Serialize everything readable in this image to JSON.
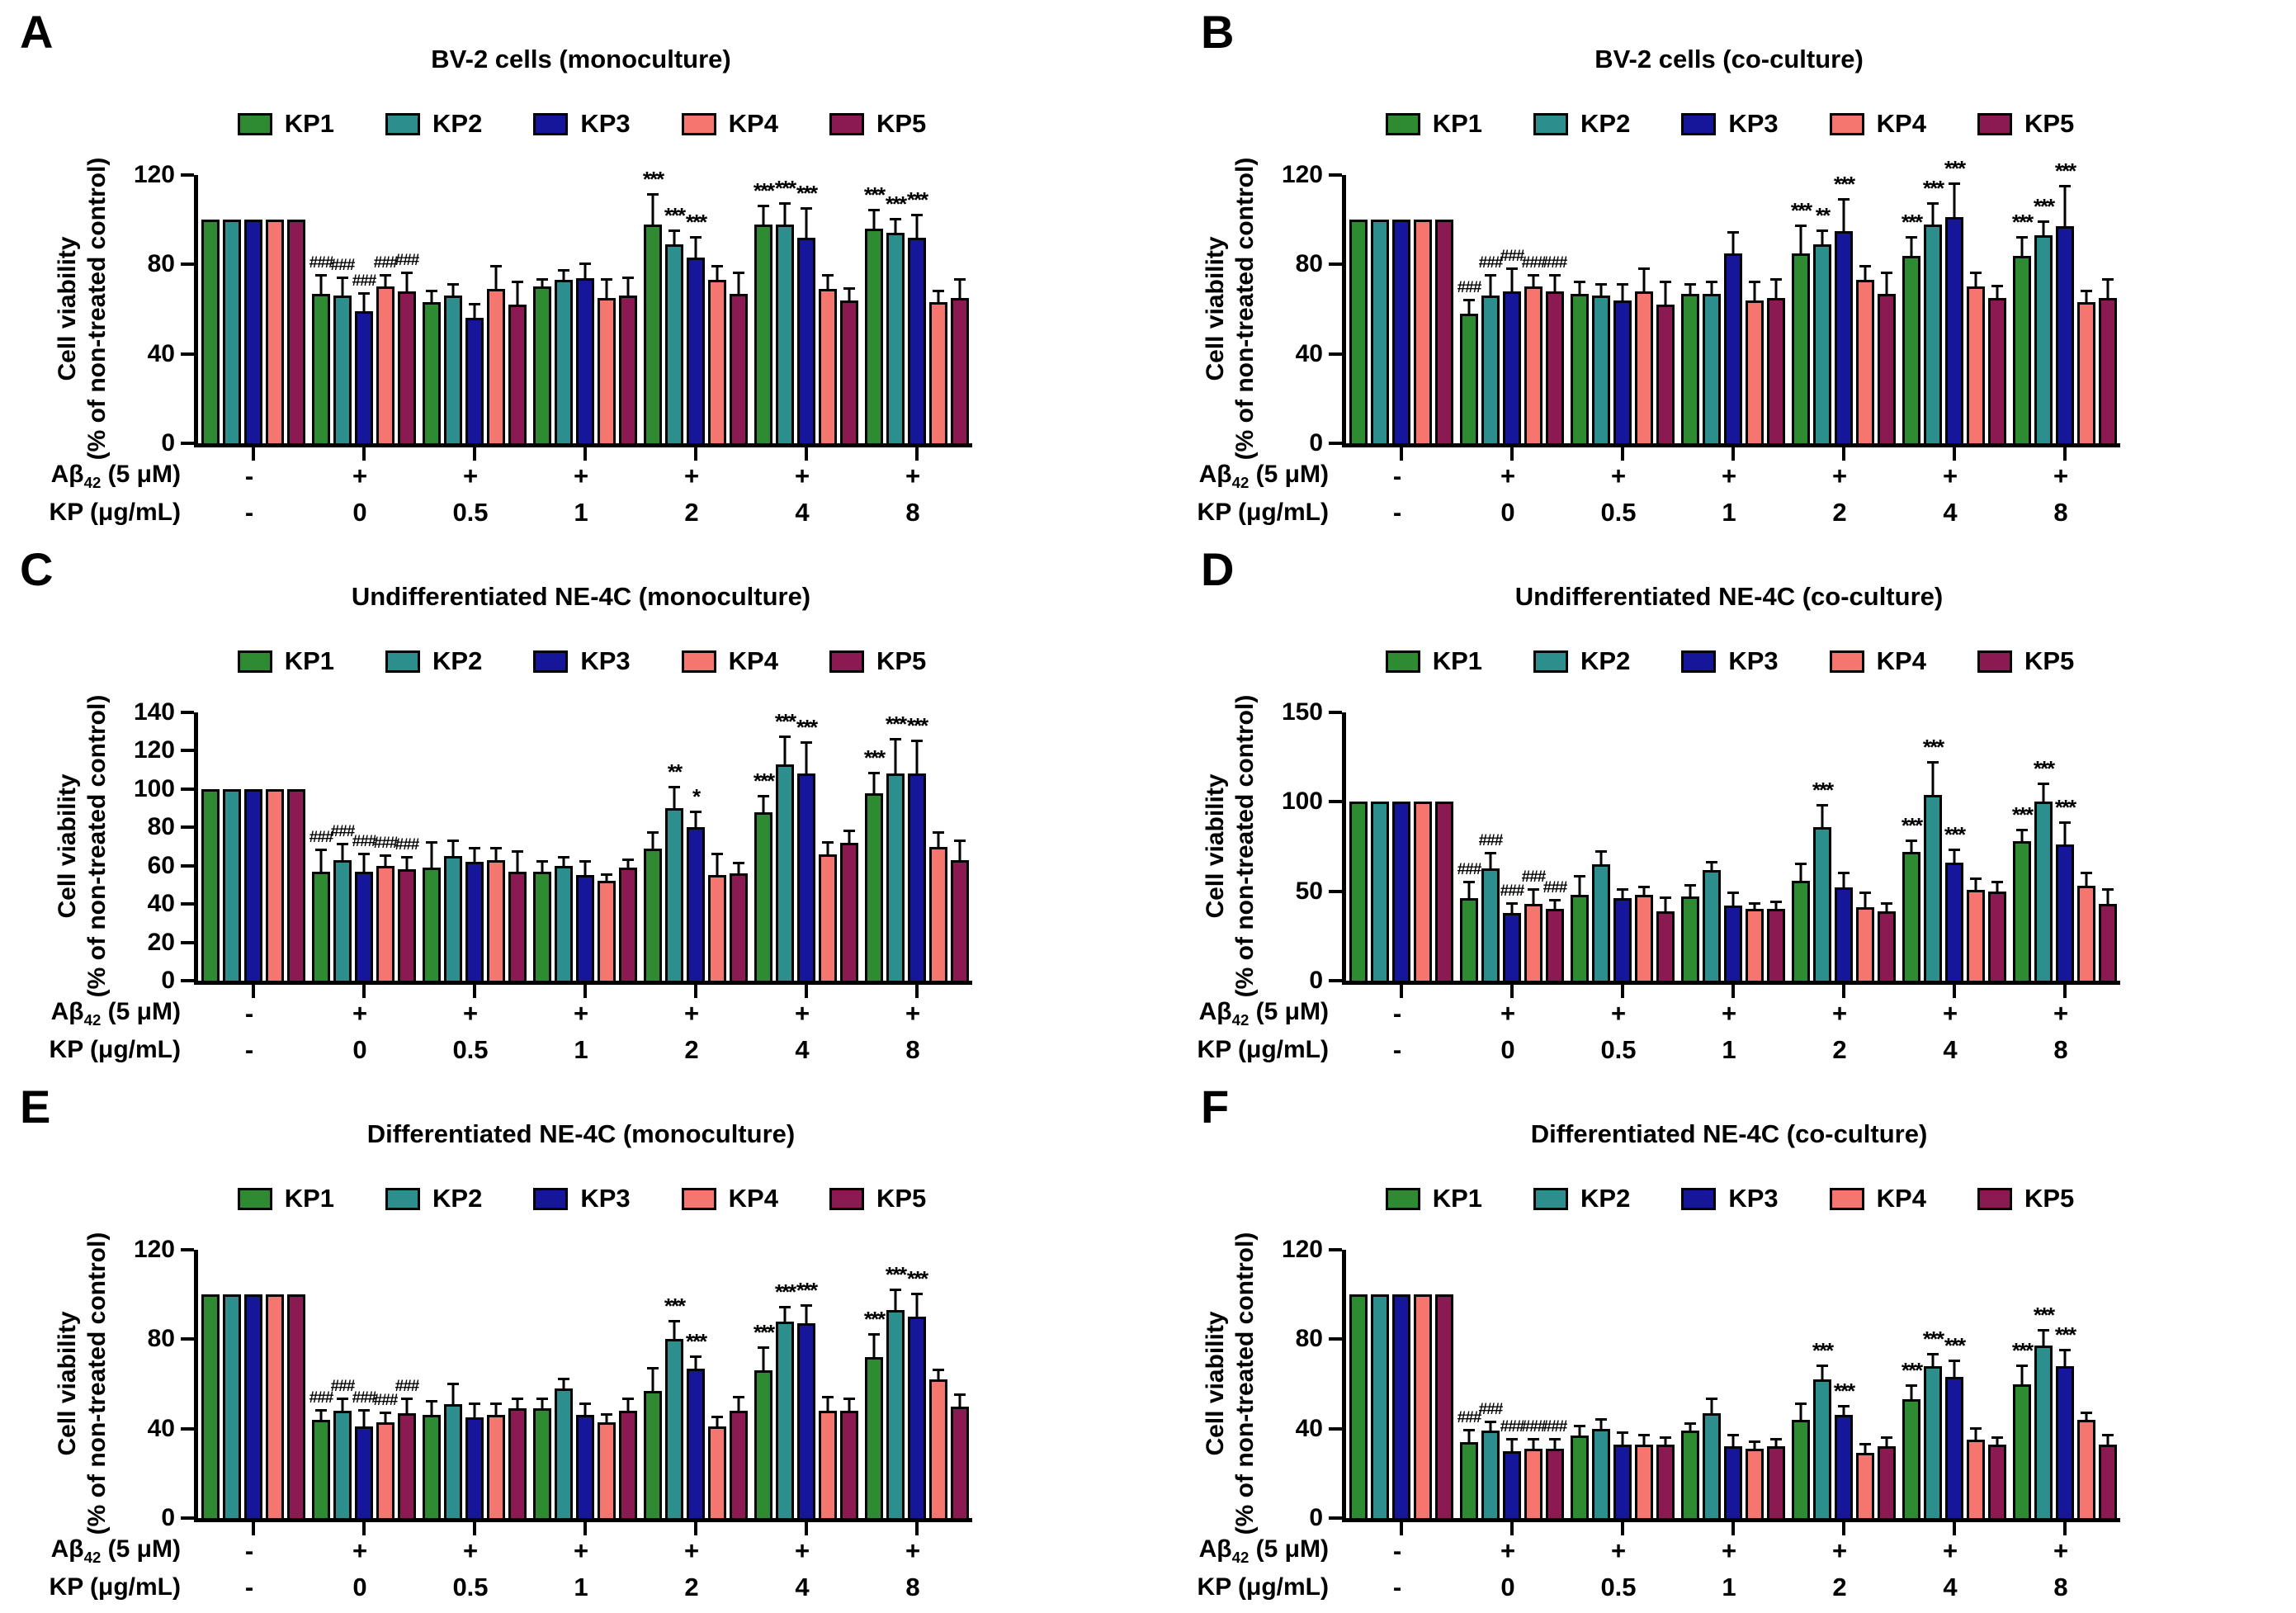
{
  "ui": {
    "ylabel1": "Cell viability",
    "ylabel2": "(% of non-treated control)",
    "xrow1": {
      "prefix": "Aβ",
      "sub": "42",
      "suffix": " (5 μM)"
    },
    "xrow2": "KP (μg/mL)",
    "bar_edge_color": "#000000",
    "series": [
      {
        "label": "KP1",
        "color": "#2e8b31"
      },
      {
        "label": "KP2",
        "color": "#2d8e8e"
      },
      {
        "label": "KP3",
        "color": "#16169b"
      },
      {
        "label": "KP4",
        "color": "#f5766f"
      },
      {
        "label": "KP5",
        "color": "#8c1a52"
      }
    ]
  },
  "chart_data": [
    {
      "type": "bar",
      "panel": "A",
      "title": "BV-2 cells (monoculture)",
      "ylabel": "Cell viability (% of non-treated control)",
      "ylim": [
        0,
        120
      ],
      "yticks": [
        0,
        40,
        80,
        120
      ],
      "legend": [
        "KP1",
        "KP2",
        "KP3",
        "KP4",
        "KP5"
      ],
      "abeta": [
        "-",
        "+",
        "+",
        "+",
        "+",
        "+",
        "+"
      ],
      "kp": [
        "-",
        "0",
        "0.5",
        "1",
        "2",
        "4",
        "8"
      ],
      "series": [
        {
          "name": "KP1",
          "values": [
            100,
            67,
            63,
            70,
            98,
            98,
            96
          ],
          "errors": [
            0,
            8,
            5,
            3,
            13,
            8,
            8
          ],
          "sig": [
            "",
            "###",
            "",
            "",
            "***",
            "***",
            "***"
          ]
        },
        {
          "name": "KP2",
          "values": [
            100,
            66,
            66,
            73,
            89,
            98,
            94
          ],
          "errors": [
            0,
            8,
            5,
            4,
            6,
            9,
            6
          ],
          "sig": [
            "",
            "###",
            "",
            "",
            "***",
            "***",
            "***"
          ]
        },
        {
          "name": "KP3",
          "values": [
            100,
            59,
            56,
            74,
            83,
            92,
            92
          ],
          "errors": [
            0,
            8,
            6,
            6,
            9,
            13,
            10
          ],
          "sig": [
            "",
            "###",
            "",
            "",
            "***",
            "***",
            "***"
          ]
        },
        {
          "name": "KP4",
          "values": [
            100,
            70,
            69,
            65,
            73,
            69,
            63
          ],
          "errors": [
            0,
            5,
            10,
            8,
            6,
            6,
            5
          ],
          "sig": [
            "",
            "###",
            "",
            "",
            "",
            "",
            ""
          ]
        },
        {
          "name": "KP5",
          "values": [
            100,
            68,
            62,
            66,
            67,
            64,
            65
          ],
          "errors": [
            0,
            8,
            10,
            8,
            9,
            5,
            8
          ],
          "sig": [
            "",
            "###",
            "",
            "",
            "",
            "",
            ""
          ]
        }
      ]
    },
    {
      "type": "bar",
      "panel": "B",
      "title": "BV-2 cells (co-culture)",
      "ylabel": "Cell viability (% of non-treated control)",
      "ylim": [
        0,
        120
      ],
      "yticks": [
        0,
        40,
        80,
        120
      ],
      "legend": [
        "KP1",
        "KP2",
        "KP3",
        "KP4",
        "KP5"
      ],
      "abeta": [
        "-",
        "+",
        "+",
        "+",
        "+",
        "+",
        "+"
      ],
      "kp": [
        "-",
        "0",
        "0.5",
        "1",
        "2",
        "4",
        "8"
      ],
      "series": [
        {
          "name": "KP1",
          "values": [
            100,
            58,
            67,
            67,
            85,
            84,
            84
          ],
          "errors": [
            0,
            6,
            5,
            4,
            12,
            8,
            8
          ],
          "sig": [
            "",
            "###",
            "",
            "",
            "***",
            "***",
            "***"
          ]
        },
        {
          "name": "KP2",
          "values": [
            100,
            66,
            66,
            67,
            89,
            98,
            93
          ],
          "errors": [
            0,
            9,
            5,
            5,
            6,
            9,
            6
          ],
          "sig": [
            "",
            "###",
            "",
            "",
            "**",
            "***",
            "***"
          ]
        },
        {
          "name": "KP3",
          "values": [
            100,
            68,
            64,
            85,
            95,
            101,
            97
          ],
          "errors": [
            0,
            10,
            7,
            9,
            14,
            15,
            18
          ],
          "sig": [
            "",
            "###",
            "",
            "",
            "***",
            "***",
            "***"
          ]
        },
        {
          "name": "KP4",
          "values": [
            100,
            70,
            68,
            64,
            73,
            70,
            63
          ],
          "errors": [
            0,
            5,
            10,
            8,
            6,
            6,
            5
          ],
          "sig": [
            "",
            "###",
            "",
            "",
            "",
            "",
            ""
          ]
        },
        {
          "name": "KP5",
          "values": [
            100,
            68,
            62,
            65,
            67,
            65,
            65
          ],
          "errors": [
            0,
            7,
            10,
            8,
            9,
            5,
            8
          ],
          "sig": [
            "",
            "###",
            "",
            "",
            "",
            "",
            ""
          ]
        }
      ]
    },
    {
      "type": "bar",
      "panel": "C",
      "title": "Undifferentiated NE-4C (monoculture)",
      "ylabel": "Cell viability (% of non-treated control)",
      "ylim": [
        0,
        140
      ],
      "yticks": [
        0,
        20,
        40,
        60,
        80,
        100,
        120,
        140
      ],
      "legend": [
        "KP1",
        "KP2",
        "KP3",
        "KP4",
        "KP5"
      ],
      "abeta": [
        "-",
        "+",
        "+",
        "+",
        "+",
        "+",
        "+"
      ],
      "kp": [
        "-",
        "0",
        "0.5",
        "1",
        "2",
        "4",
        "8"
      ],
      "series": [
        {
          "name": "KP1",
          "values": [
            100,
            57,
            59,
            57,
            69,
            88,
            98
          ],
          "errors": [
            0,
            11,
            13,
            5,
            8,
            8,
            10
          ],
          "sig": [
            "",
            "###",
            "",
            "",
            "",
            "***",
            "***"
          ]
        },
        {
          "name": "KP2",
          "values": [
            100,
            63,
            65,
            60,
            90,
            113,
            108
          ],
          "errors": [
            0,
            8,
            8,
            4,
            11,
            14,
            18
          ],
          "sig": [
            "",
            "###",
            "",
            "",
            "**",
            "***",
            "***"
          ]
        },
        {
          "name": "KP3",
          "values": [
            100,
            57,
            62,
            55,
            80,
            108,
            108
          ],
          "errors": [
            0,
            9,
            7,
            7,
            8,
            16,
            17
          ],
          "sig": [
            "",
            "###",
            "",
            "",
            "*",
            "***",
            "***"
          ]
        },
        {
          "name": "KP4",
          "values": [
            100,
            60,
            63,
            52,
            55,
            66,
            70
          ],
          "errors": [
            0,
            5,
            6,
            3,
            11,
            6,
            7
          ],
          "sig": [
            "",
            "###",
            "",
            "",
            "",
            "",
            ""
          ]
        },
        {
          "name": "KP5",
          "values": [
            100,
            58,
            57,
            59,
            56,
            72,
            63
          ],
          "errors": [
            0,
            6,
            10,
            4,
            5,
            6,
            10
          ],
          "sig": [
            "",
            "###",
            "",
            "",
            "",
            "",
            ""
          ]
        }
      ]
    },
    {
      "type": "bar",
      "panel": "D",
      "title": "Undifferentiated NE-4C (co-culture)",
      "ylabel": "Cell viability (% of non-treated control)",
      "ylim": [
        0,
        150
      ],
      "yticks": [
        0,
        50,
        100,
        150
      ],
      "legend": [
        "KP1",
        "KP2",
        "KP3",
        "KP4",
        "KP5"
      ],
      "abeta": [
        "-",
        "+",
        "+",
        "+",
        "+",
        "+",
        "+"
      ],
      "kp": [
        "-",
        "0",
        "0.5",
        "1",
        "2",
        "4",
        "8"
      ],
      "series": [
        {
          "name": "KP1",
          "values": [
            100,
            46,
            48,
            47,
            56,
            72,
            78
          ],
          "errors": [
            0,
            9,
            10,
            6,
            9,
            6,
            6
          ],
          "sig": [
            "",
            "###",
            "",
            "",
            "",
            "***",
            "***"
          ]
        },
        {
          "name": "KP2",
          "values": [
            100,
            63,
            65,
            62,
            86,
            104,
            100
          ],
          "errors": [
            0,
            8,
            7,
            4,
            12,
            18,
            10
          ],
          "sig": [
            "",
            "###",
            "",
            "",
            "***",
            "***",
            "***"
          ]
        },
        {
          "name": "KP3",
          "values": [
            100,
            38,
            46,
            42,
            52,
            66,
            76
          ],
          "errors": [
            0,
            5,
            5,
            7,
            8,
            7,
            12
          ],
          "sig": [
            "",
            "###",
            "",
            "",
            "",
            "***",
            "***"
          ]
        },
        {
          "name": "KP4",
          "values": [
            100,
            43,
            48,
            40,
            41,
            51,
            53
          ],
          "errors": [
            0,
            8,
            4,
            3,
            8,
            6,
            7
          ],
          "sig": [
            "",
            "###",
            "",
            "",
            "",
            "",
            ""
          ]
        },
        {
          "name": "KP5",
          "values": [
            100,
            40,
            39,
            40,
            39,
            50,
            43
          ],
          "errors": [
            0,
            5,
            7,
            4,
            4,
            5,
            8
          ],
          "sig": [
            "",
            "###",
            "",
            "",
            "",
            "",
            ""
          ]
        }
      ]
    },
    {
      "type": "bar",
      "panel": "E",
      "title": "Differentiated NE-4C (monoculture)",
      "ylabel": "Cell viability (% of non-treated control)",
      "ylim": [
        0,
        120
      ],
      "yticks": [
        0,
        40,
        80,
        120
      ],
      "legend": [
        "KP1",
        "KP2",
        "KP3",
        "KP4",
        "KP5"
      ],
      "abeta": [
        "-",
        "+",
        "+",
        "+",
        "+",
        "+",
        "+"
      ],
      "kp": [
        "-",
        "0",
        "0.5",
        "1",
        "2",
        "4",
        "8"
      ],
      "series": [
        {
          "name": "KP1",
          "values": [
            100,
            44,
            46,
            49,
            57,
            66,
            72
          ],
          "errors": [
            0,
            4,
            6,
            4,
            10,
            10,
            10
          ],
          "sig": [
            "",
            "###",
            "",
            "",
            "",
            "***",
            "***"
          ]
        },
        {
          "name": "KP2",
          "values": [
            100,
            48,
            51,
            58,
            80,
            88,
            93
          ],
          "errors": [
            0,
            5,
            9,
            4,
            8,
            6,
            9
          ],
          "sig": [
            "",
            "###",
            "",
            "",
            "***",
            "***",
            "***"
          ]
        },
        {
          "name": "KP3",
          "values": [
            100,
            41,
            45,
            46,
            67,
            87,
            90
          ],
          "errors": [
            0,
            7,
            6,
            5,
            5,
            8,
            10
          ],
          "sig": [
            "",
            "###",
            "",
            "",
            "***",
            "***",
            "***"
          ]
        },
        {
          "name": "KP4",
          "values": [
            100,
            43,
            46,
            43,
            41,
            48,
            62
          ],
          "errors": [
            0,
            4,
            5,
            3,
            4,
            6,
            4
          ],
          "sig": [
            "",
            "###",
            "",
            "",
            "",
            "",
            ""
          ]
        },
        {
          "name": "KP5",
          "values": [
            100,
            47,
            49,
            48,
            48,
            48,
            50
          ],
          "errors": [
            0,
            6,
            4,
            5,
            6,
            5,
            5
          ],
          "sig": [
            "",
            "###",
            "",
            "",
            "",
            "",
            ""
          ]
        }
      ]
    },
    {
      "type": "bar",
      "panel": "F",
      "title": "Differentiated NE-4C (co-culture)",
      "ylabel": "Cell viability (% of non-treated control)",
      "ylim": [
        0,
        120
      ],
      "yticks": [
        0,
        40,
        80,
        120
      ],
      "legend": [
        "KP1",
        "KP2",
        "KP3",
        "KP4",
        "KP5"
      ],
      "abeta": [
        "-",
        "+",
        "+",
        "+",
        "+",
        "+",
        "+"
      ],
      "kp": [
        "-",
        "0",
        "0.5",
        "1",
        "2",
        "4",
        "8"
      ],
      "series": [
        {
          "name": "KP1",
          "values": [
            100,
            34,
            37,
            39,
            44,
            53,
            60
          ],
          "errors": [
            0,
            5,
            4,
            3,
            7,
            6,
            8
          ],
          "sig": [
            "",
            "###",
            "",
            "",
            "",
            "***",
            "***"
          ]
        },
        {
          "name": "KP2",
          "values": [
            100,
            39,
            40,
            47,
            62,
            68,
            77
          ],
          "errors": [
            0,
            4,
            4,
            6,
            6,
            5,
            7
          ],
          "sig": [
            "",
            "###",
            "",
            "",
            "***",
            "***",
            "***"
          ]
        },
        {
          "name": "KP3",
          "values": [
            100,
            30,
            33,
            32,
            46,
            63,
            68
          ],
          "errors": [
            0,
            5,
            5,
            5,
            4,
            7,
            7
          ],
          "sig": [
            "",
            "###",
            "",
            "",
            "***",
            "***",
            "***"
          ]
        },
        {
          "name": "KP4",
          "values": [
            100,
            31,
            33,
            31,
            29,
            35,
            44
          ],
          "errors": [
            0,
            4,
            4,
            3,
            4,
            5,
            3
          ],
          "sig": [
            "",
            "###",
            "",
            "",
            "",
            "",
            ""
          ]
        },
        {
          "name": "KP5",
          "values": [
            100,
            31,
            33,
            32,
            32,
            33,
            33
          ],
          "errors": [
            0,
            4,
            3,
            3,
            4,
            3,
            4
          ],
          "sig": [
            "",
            "###",
            "",
            "",
            "",
            "",
            ""
          ]
        }
      ]
    }
  ]
}
